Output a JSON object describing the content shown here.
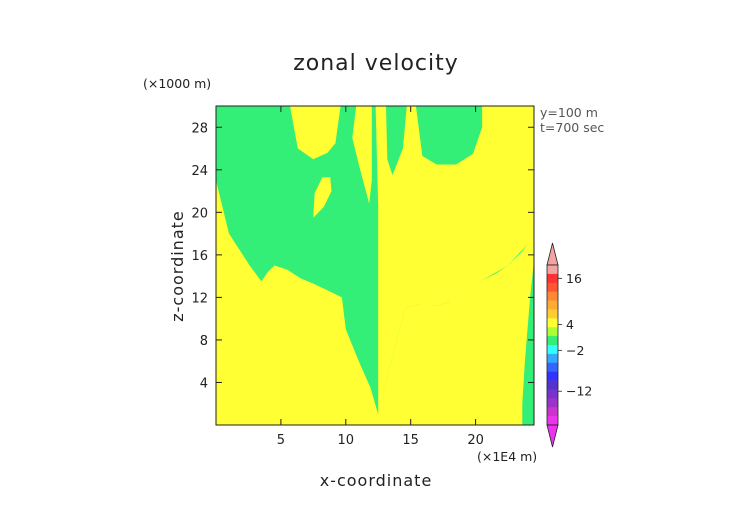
{
  "chart_data": {
    "type": "heatmap",
    "title": "zonal velocity",
    "xlabel": "x-coordinate",
    "ylabel": "z-coordinate",
    "x_units": "(×1E4 m)",
    "y_units": "(×1000 m)",
    "annotations": [
      "y=100  m",
      "t=700 sec"
    ],
    "xlim": [
      0,
      24.5
    ],
    "ylim": [
      0,
      30
    ],
    "x_ticks": [
      5,
      10,
      15,
      20
    ],
    "y_ticks": [
      4,
      8,
      12,
      16,
      20,
      24,
      28
    ],
    "background_color": "#ffff33",
    "field_regions": [
      {
        "name": "negative-velocity",
        "color": "#33ee77",
        "boundary": [
          [
            0,
            30
          ],
          [
            0,
            23
          ],
          [
            1,
            18
          ],
          [
            2.6,
            15
          ],
          [
            3.5,
            13.5
          ],
          [
            4,
            14.4
          ],
          [
            4.5,
            15
          ],
          [
            5.5,
            14.6
          ],
          [
            6.5,
            13.8
          ],
          [
            7.5,
            13.3
          ],
          [
            8.7,
            12.6
          ],
          [
            9.7,
            12
          ],
          [
            10,
            9
          ],
          [
            11,
            6
          ],
          [
            11.9,
            3.5
          ],
          [
            12.5,
            1
          ],
          [
            13,
            3.5
          ],
          [
            13.7,
            7
          ],
          [
            14.6,
            11
          ],
          [
            15.5,
            11.3
          ],
          [
            16,
            11.3
          ],
          [
            17,
            11.2
          ],
          [
            18,
            11.6
          ],
          [
            19,
            12.4
          ],
          [
            20.5,
            13.6
          ],
          [
            21.5,
            14.2
          ],
          [
            22.5,
            15
          ],
          [
            23.5,
            16.2
          ],
          [
            24,
            17
          ],
          [
            24.5,
            16.6
          ],
          [
            24.5,
            15.5
          ],
          [
            24.2,
            12
          ],
          [
            23.8,
            6
          ],
          [
            23.6,
            2
          ],
          [
            23.6,
            0
          ],
          [
            24.5,
            0
          ],
          [
            24.5,
            30
          ]
        ],
        "notes": "inner yellow lobes carved out of the green region"
      },
      {
        "name": "positive-lobes",
        "color": "#ffff33",
        "lobes": [
          [
            [
              5.7,
              30
            ],
            [
              6.3,
              26
            ],
            [
              7.5,
              25
            ],
            [
              8.6,
              25.6
            ],
            [
              9.2,
              26.5
            ],
            [
              9.6,
              30
            ]
          ],
          [
            [
              10.8,
              30
            ],
            [
              10.5,
              27
            ],
            [
              11,
              24.5
            ],
            [
              11.8,
              20.8
            ],
            [
              12,
              23
            ],
            [
              12,
              30
            ]
          ],
          [
            [
              12.3,
              30
            ],
            [
              12.5,
              20.5
            ],
            [
              12.5,
              0.8
            ],
            [
              13,
              3.5
            ],
            [
              13.7,
              7
            ],
            [
              14.6,
              11
            ],
            [
              15.5,
              11.3
            ],
            [
              17,
              11.2
            ],
            [
              18.5,
              11.8
            ],
            [
              20.5,
              13.6
            ],
            [
              22.5,
              15
            ],
            [
              24,
              17
            ],
            [
              24.5,
              16.6
            ],
            [
              24.5,
              30
            ],
            [
              20.5,
              30
            ],
            [
              20.5,
              28
            ],
            [
              19.8,
              25.5
            ],
            [
              18.5,
              24.5
            ],
            [
              17,
              24.5
            ],
            [
              15.9,
              25.3
            ],
            [
              15.4,
              30
            ],
            [
              14.7,
              30
            ],
            [
              14.4,
              26
            ],
            [
              13.6,
              23.5
            ],
            [
              13.2,
              25
            ],
            [
              13.1,
              30
            ]
          ],
          [
            [
              7.5,
              19.5
            ],
            [
              8.3,
              20.5
            ],
            [
              8.9,
              22
            ],
            [
              8.8,
              23.3
            ],
            [
              8.2,
              23.3
            ],
            [
              7.6,
              21.8
            ]
          ],
          [
            [
              14.5,
              18.3
            ],
            [
              15.2,
              20.5
            ],
            [
              15.8,
              22.5
            ],
            [
              16.3,
              23.8
            ],
            [
              15.8,
              24
            ],
            [
              15,
              22.4
            ],
            [
              14.4,
              20
            ]
          ]
        ]
      }
    ],
    "colorbar": {
      "tick_labels": [
        "16",
        "4",
        "−2",
        "−12"
      ],
      "colors_top_to_bottom": [
        "#f4a3a3",
        "#ff3333",
        "#ff5533",
        "#ff8833",
        "#ffaa33",
        "#ffcc33",
        "#ffff33",
        "#aaff33",
        "#33ee77",
        "#33ffff",
        "#33aaff",
        "#3366ff",
        "#3333ff",
        "#5533cc",
        "#7733cc",
        "#9933cc",
        "#cc33cc",
        "#ee33ee"
      ]
    }
  }
}
